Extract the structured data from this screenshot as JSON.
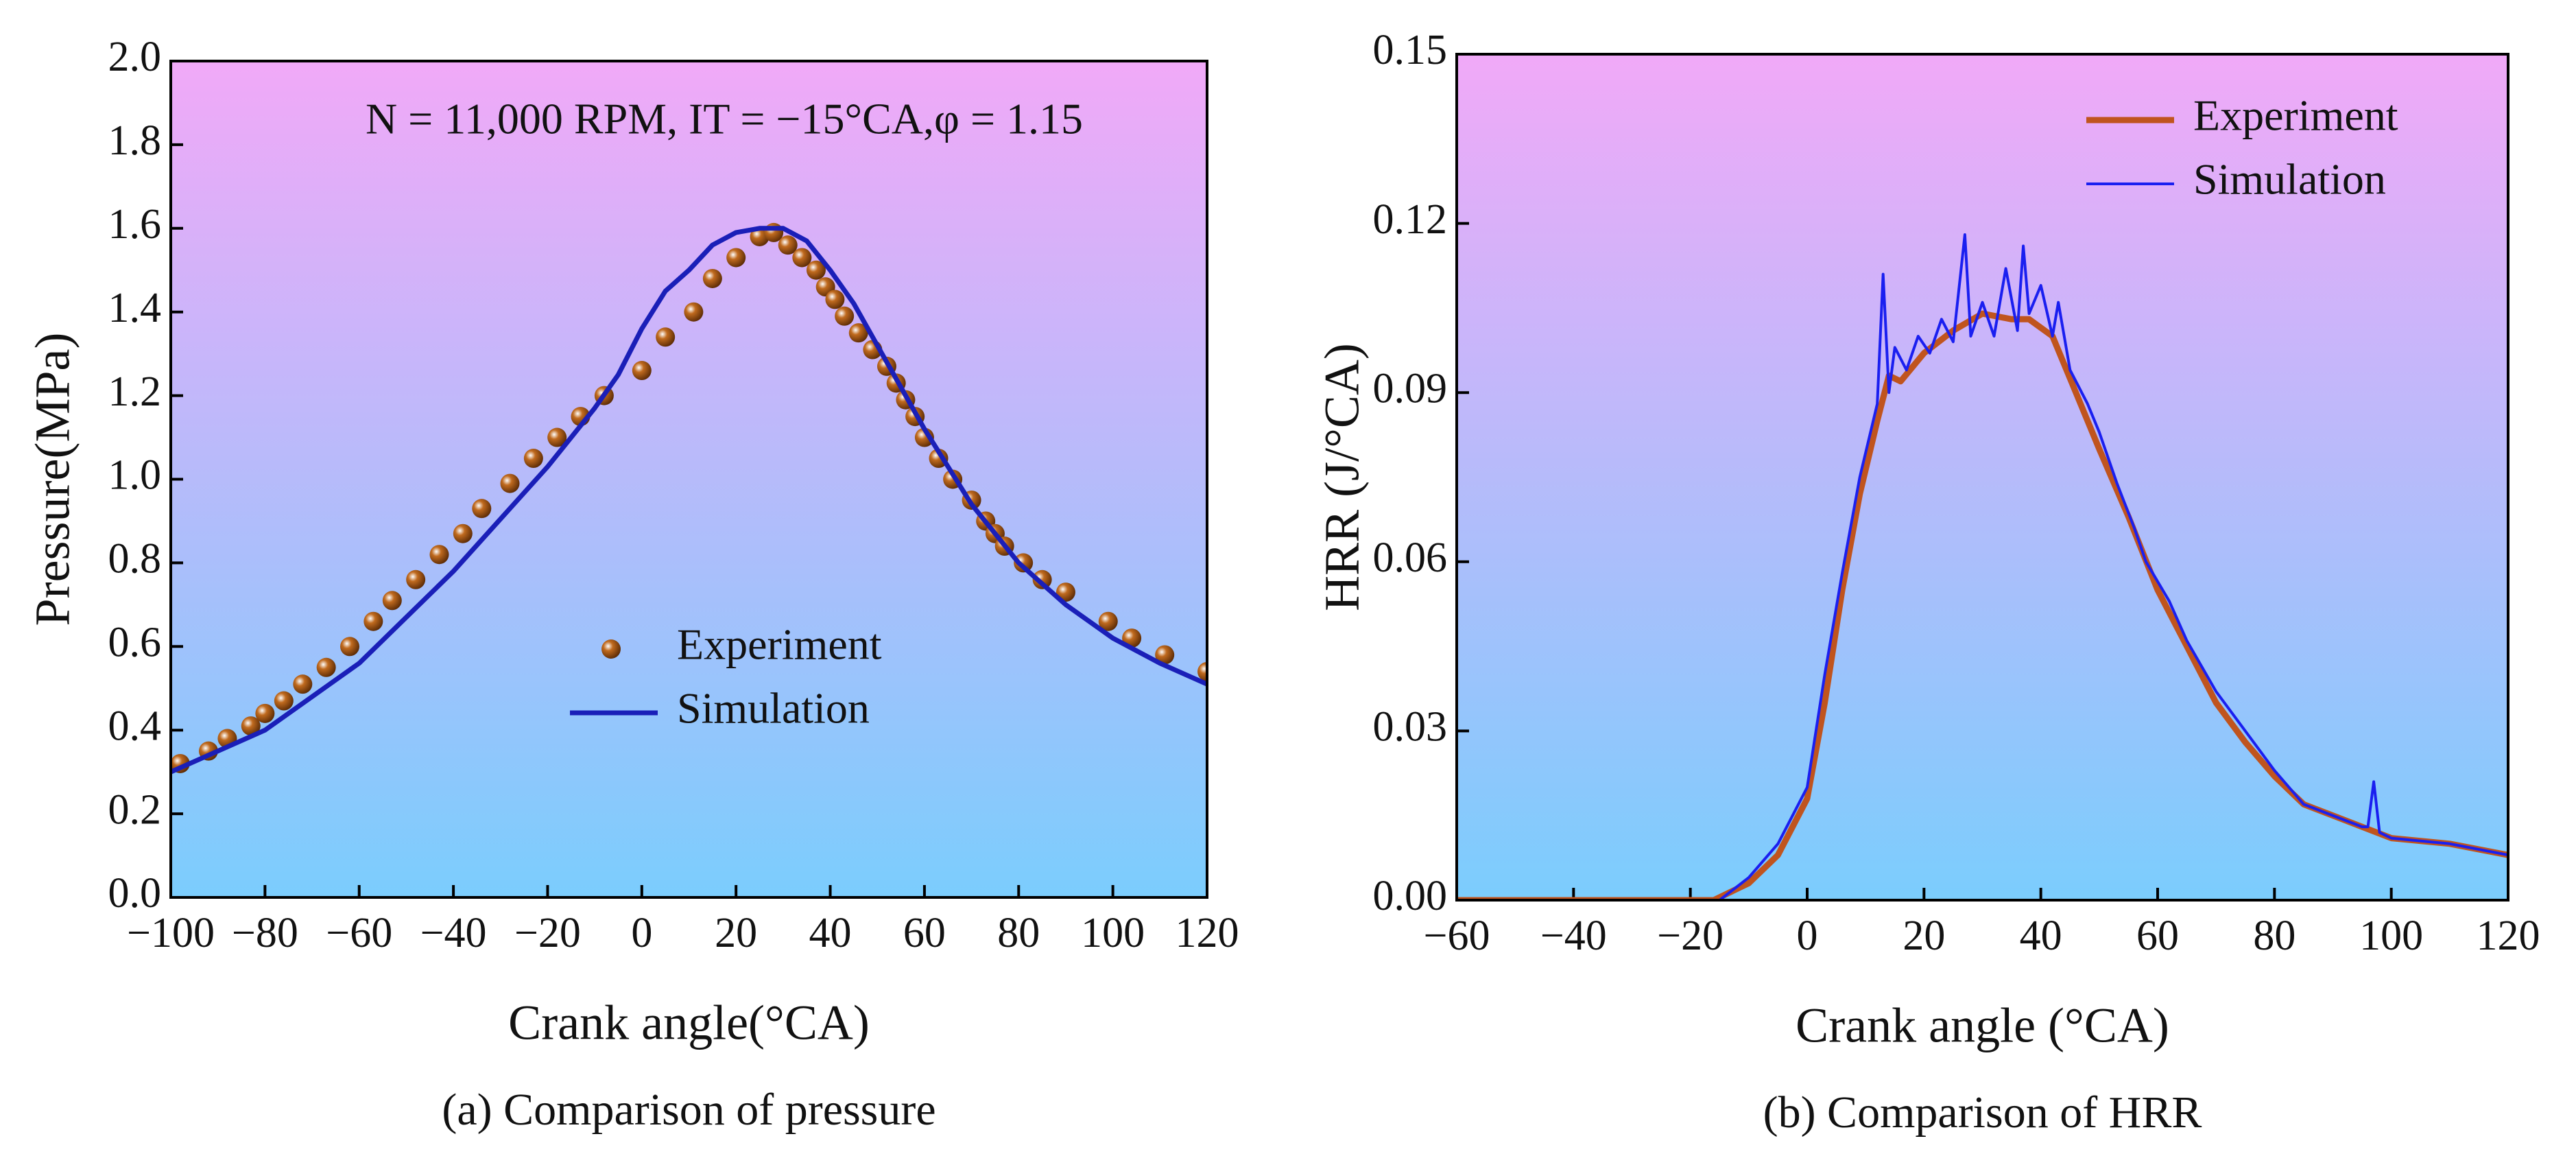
{
  "chart_data": [
    {
      "type": "line",
      "annotation": "N = 11,000 RPM,  IT = −15°CA,φ = 1.15",
      "xlabel": "Crank angle(°CA)",
      "ylabel": "Pressure(MPa)",
      "caption": "(a) Comparison of pressure",
      "xlim": [
        -100,
        120
      ],
      "ylim": [
        0,
        2.0
      ],
      "xticks": [
        {
          "value": -100,
          "label": "−100"
        },
        {
          "value": -80,
          "label": "−80"
        },
        {
          "value": -60,
          "label": "−60"
        },
        {
          "value": -40,
          "label": "−40"
        },
        {
          "value": -20,
          "label": "−20"
        },
        0,
        20,
        40,
        60,
        80,
        100,
        120
      ],
      "yticks": [
        {
          "value": 0,
          "label": "0.0"
        },
        0.2,
        0.4,
        0.6,
        0.8,
        {
          "value": 1,
          "label": "1.0"
        },
        1.2,
        1.4,
        1.6,
        1.8,
        {
          "value": 2,
          "label": "2.0"
        }
      ],
      "legend": "center left",
      "series": [
        {
          "name": "Experiment",
          "color": "#c06a1e",
          "style": "markers",
          "x": [
            -98,
            -92,
            -88,
            -83,
            -80,
            -76,
            -72,
            -67,
            -62,
            -57,
            -53,
            -48,
            -43,
            -38,
            -34,
            -28,
            -23,
            -18,
            -13,
            -8,
            0,
            5,
            11,
            15,
            20,
            25,
            28,
            31,
            34,
            37,
            39,
            41,
            43,
            46,
            49,
            52,
            54,
            56,
            58,
            60,
            63,
            66,
            70,
            73,
            75,
            77,
            81,
            85,
            90,
            99,
            104,
            111,
            120
          ],
          "values": [
            0.32,
            0.35,
            0.38,
            0.41,
            0.44,
            0.47,
            0.51,
            0.55,
            0.6,
            0.66,
            0.71,
            0.76,
            0.82,
            0.87,
            0.93,
            0.99,
            1.05,
            1.1,
            1.15,
            1.2,
            1.26,
            1.34,
            1.4,
            1.48,
            1.53,
            1.58,
            1.59,
            1.56,
            1.53,
            1.5,
            1.46,
            1.43,
            1.39,
            1.35,
            1.31,
            1.27,
            1.23,
            1.19,
            1.15,
            1.1,
            1.05,
            1.0,
            0.95,
            0.9,
            0.87,
            0.84,
            0.8,
            0.76,
            0.73,
            0.66,
            0.62,
            0.58,
            0.54
          ]
        },
        {
          "name": "Simulation",
          "color": "#1a1fb8",
          "style": "line",
          "x": [
            -100,
            -80,
            -60,
            -40,
            -20,
            -10,
            -5,
            0,
            5,
            10,
            15,
            20,
            25,
            30,
            35,
            40,
            45,
            50,
            55,
            60,
            65,
            70,
            80,
            90,
            100,
            110,
            120
          ],
          "values": [
            0.3,
            0.4,
            0.56,
            0.78,
            1.03,
            1.17,
            1.25,
            1.36,
            1.45,
            1.5,
            1.56,
            1.59,
            1.6,
            1.6,
            1.57,
            1.5,
            1.42,
            1.32,
            1.22,
            1.12,
            1.03,
            0.94,
            0.8,
            0.7,
            0.62,
            0.56,
            0.51
          ]
        }
      ]
    },
    {
      "type": "line",
      "xlabel": "Crank angle (°CA)",
      "ylabel": "HRR (J/°CA)",
      "caption": "(b) Comparison of HRR",
      "xlim": [
        -60,
        120
      ],
      "ylim": [
        0,
        0.15
      ],
      "xticks": [
        {
          "value": -60,
          "label": "−60"
        },
        {
          "value": -40,
          "label": "−40"
        },
        {
          "value": -20,
          "label": "−20"
        },
        0,
        20,
        40,
        60,
        80,
        100,
        120
      ],
      "yticks": [
        {
          "value": 0,
          "label": "0.00"
        },
        0.03,
        0.06,
        0.09,
        0.12,
        0.15
      ],
      "legend": "upper right",
      "series": [
        {
          "name": "Experiment",
          "color": "#c0541e",
          "style": "thick",
          "x": [
            -60,
            -20,
            -16,
            -10,
            -5,
            0,
            3,
            6,
            9,
            12,
            14,
            16,
            20,
            25,
            30,
            35,
            38,
            42,
            46,
            50,
            55,
            60,
            65,
            70,
            75,
            80,
            85,
            90,
            100,
            110,
            120
          ],
          "values": [
            0,
            0,
            0,
            0.003,
            0.008,
            0.018,
            0.035,
            0.055,
            0.072,
            0.085,
            0.093,
            0.092,
            0.097,
            0.101,
            0.104,
            0.103,
            0.103,
            0.1,
            0.09,
            0.08,
            0.068,
            0.055,
            0.045,
            0.035,
            0.028,
            0.022,
            0.017,
            0.015,
            0.011,
            0.01,
            0.008
          ]
        },
        {
          "name": "Simulation",
          "color": "#1a1ff0",
          "style": "line",
          "x": [
            -15,
            -10,
            -5,
            0,
            3,
            6,
            9,
            12,
            13,
            14,
            15,
            17,
            19,
            21,
            23,
            25,
            27,
            28,
            30,
            32,
            34,
            36,
            37,
            38,
            40,
            42,
            43,
            45,
            48,
            50,
            53,
            56,
            58,
            62,
            65,
            70,
            75,
            80,
            85,
            90,
            95,
            96,
            97,
            98,
            100,
            110,
            120
          ],
          "values": [
            0,
            0.004,
            0.01,
            0.02,
            0.04,
            0.058,
            0.075,
            0.088,
            0.111,
            0.09,
            0.098,
            0.094,
            0.1,
            0.097,
            0.103,
            0.099,
            0.118,
            0.1,
            0.106,
            0.1,
            0.112,
            0.101,
            0.116,
            0.104,
            0.109,
            0.1,
            0.106,
            0.094,
            0.088,
            0.083,
            0.074,
            0.066,
            0.06,
            0.053,
            0.046,
            0.037,
            0.03,
            0.023,
            0.017,
            0.015,
            0.013,
            0.013,
            0.021,
            0.012,
            0.011,
            0.01,
            0.008
          ]
        }
      ]
    }
  ]
}
